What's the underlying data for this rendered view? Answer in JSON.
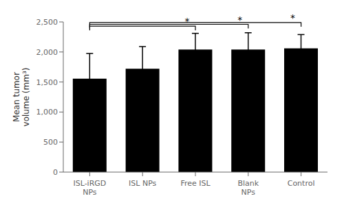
{
  "chart_data": {
    "type": "bar",
    "categories": [
      "ISL-iRGD\nNPs",
      "ISL NPs",
      "Free ISL",
      "Blank\nNPs",
      "Control"
    ],
    "values": [
      1555,
      1720,
      2040,
      2040,
      2060
    ],
    "errors": [
      420,
      370,
      270,
      280,
      230
    ],
    "ylabel": "Mean tumor\nvolume (mm³)",
    "ylim": [
      0,
      2500
    ],
    "yticks": [
      0,
      500,
      {
        "value": 1000,
        "label": "1,000"
      },
      {
        "value": 1500,
        "label": "1,500"
      },
      {
        "value": 2000,
        "label": "2,000"
      },
      {
        "value": 2500,
        "label": "2,500"
      }
    ],
    "grid": false,
    "annotations": [
      {
        "from": "ISL-iRGD\nNPs",
        "to": "Free ISL",
        "y": 2430,
        "text": "*"
      },
      {
        "from": "ISL-iRGD\nNPs",
        "to": "Blank\nNPs",
        "y": 2460,
        "text": "*"
      },
      {
        "from": "ISL-iRGD\nNPs",
        "to": "Control",
        "y": 2490,
        "text": "*"
      }
    ]
  }
}
